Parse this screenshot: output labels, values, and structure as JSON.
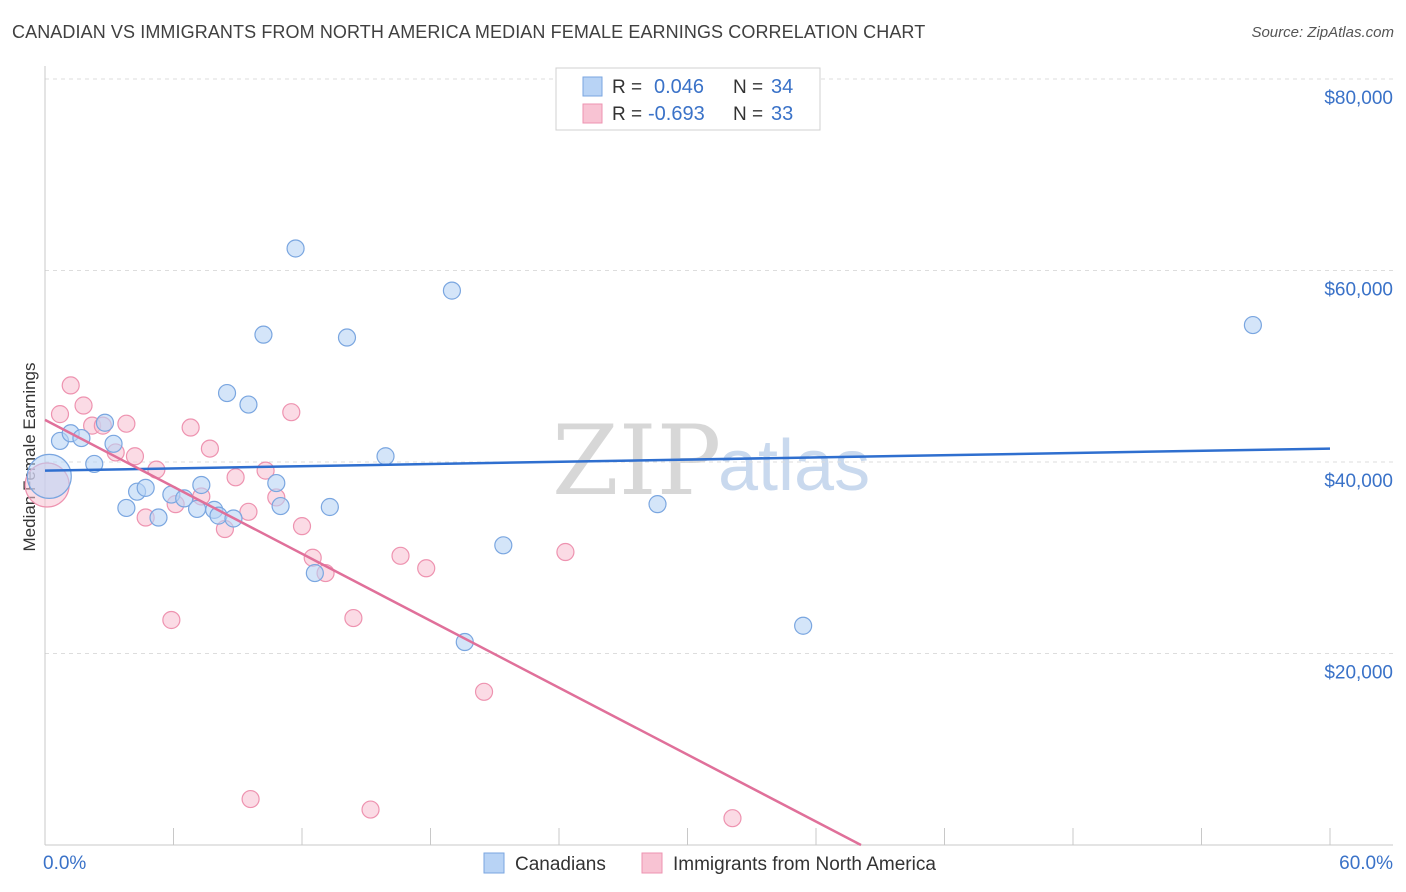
{
  "title": "CANADIAN VS IMMIGRANTS FROM NORTH AMERICA MEDIAN FEMALE EARNINGS CORRELATION CHART",
  "source": "Source: ZipAtlas.com",
  "watermark": {
    "zip": "ZIP",
    "atlas": "atlas"
  },
  "legend": {
    "r_label": "R =",
    "n_label": "N =",
    "series": [
      {
        "r": "0.046",
        "n": "34"
      },
      {
        "r": "-0.693",
        "n": "33"
      }
    ]
  },
  "chart_data": {
    "type": "scatter",
    "ylabel": "Median Female Earnings",
    "xlabel": "",
    "x_tick_labels": [
      "0.0%",
      "60.0%"
    ],
    "y_tick_labels": [
      "$20,000",
      "$40,000",
      "$60,000",
      "$80,000"
    ],
    "y_ticks": [
      20000,
      40000,
      60000,
      80000
    ],
    "xlim": [
      0,
      60
    ],
    "ylim": [
      0,
      80000
    ],
    "colors": {
      "canadians_fill": "#b8d3f5",
      "canadians_stroke": "#7aa6e0",
      "canadians_line": "#2f6fcf",
      "immigrants_fill": "#f8c3d3",
      "immigrants_stroke": "#ee93b0",
      "immigrants_line": "#e0709a"
    },
    "series": [
      {
        "name": "Canadians",
        "trend": {
          "x": [
            0,
            60
          ],
          "y": [
            39100,
            41400
          ]
        },
        "points": [
          {
            "x": 0.2,
            "y": 38500,
            "big": true
          },
          {
            "x": 0.7,
            "y": 42200
          },
          {
            "x": 1.2,
            "y": 43000
          },
          {
            "x": 1.7,
            "y": 42500
          },
          {
            "x": 2.3,
            "y": 39800
          },
          {
            "x": 2.8,
            "y": 44100
          },
          {
            "x": 3.2,
            "y": 41900
          },
          {
            "x": 3.8,
            "y": 35200
          },
          {
            "x": 4.3,
            "y": 36900
          },
          {
            "x": 4.7,
            "y": 37300
          },
          {
            "x": 5.3,
            "y": 34200
          },
          {
            "x": 5.9,
            "y": 36600
          },
          {
            "x": 6.5,
            "y": 36200
          },
          {
            "x": 7.1,
            "y": 35100
          },
          {
            "x": 7.3,
            "y": 37600
          },
          {
            "x": 7.9,
            "y": 35000
          },
          {
            "x": 8.1,
            "y": 34400
          },
          {
            "x": 8.8,
            "y": 34100
          },
          {
            "x": 8.5,
            "y": 47200
          },
          {
            "x": 9.5,
            "y": 46000
          },
          {
            "x": 10.2,
            "y": 53300
          },
          {
            "x": 10.8,
            "y": 37800
          },
          {
            "x": 11.0,
            "y": 35400
          },
          {
            "x": 11.7,
            "y": 62300
          },
          {
            "x": 12.6,
            "y": 28400
          },
          {
            "x": 13.3,
            "y": 35300
          },
          {
            "x": 14.1,
            "y": 53000
          },
          {
            "x": 15.9,
            "y": 40600
          },
          {
            "x": 19.0,
            "y": 57900
          },
          {
            "x": 19.6,
            "y": 21200
          },
          {
            "x": 21.4,
            "y": 31300
          },
          {
            "x": 28.6,
            "y": 35600
          },
          {
            "x": 35.4,
            "y": 22900
          },
          {
            "x": 56.4,
            "y": 54300
          }
        ]
      },
      {
        "name": "Immigrants from North America",
        "trend": {
          "x": [
            0,
            38.1
          ],
          "y": [
            44400,
            0
          ]
        },
        "points": [
          {
            "x": 0.1,
            "y": 37600,
            "big": true
          },
          {
            "x": 0.7,
            "y": 45000
          },
          {
            "x": 1.2,
            "y": 48000
          },
          {
            "x": 1.8,
            "y": 45900
          },
          {
            "x": 2.2,
            "y": 43800
          },
          {
            "x": 2.7,
            "y": 43800
          },
          {
            "x": 3.3,
            "y": 41000
          },
          {
            "x": 3.8,
            "y": 44000
          },
          {
            "x": 4.2,
            "y": 40600
          },
          {
            "x": 4.7,
            "y": 34200
          },
          {
            "x": 5.2,
            "y": 39200
          },
          {
            "x": 5.9,
            "y": 23500
          },
          {
            "x": 6.1,
            "y": 35600
          },
          {
            "x": 6.8,
            "y": 43600
          },
          {
            "x": 7.3,
            "y": 36400
          },
          {
            "x": 7.7,
            "y": 41400
          },
          {
            "x": 8.4,
            "y": 33000
          },
          {
            "x": 8.9,
            "y": 38400
          },
          {
            "x": 9.5,
            "y": 34800
          },
          {
            "x": 9.6,
            "y": 4800
          },
          {
            "x": 10.3,
            "y": 39100
          },
          {
            "x": 10.8,
            "y": 36300
          },
          {
            "x": 11.5,
            "y": 45200
          },
          {
            "x": 12.0,
            "y": 33300
          },
          {
            "x": 12.5,
            "y": 30000
          },
          {
            "x": 13.1,
            "y": 28400
          },
          {
            "x": 14.4,
            "y": 23700
          },
          {
            "x": 15.2,
            "y": 3700
          },
          {
            "x": 16.6,
            "y": 30200
          },
          {
            "x": 17.8,
            "y": 28900
          },
          {
            "x": 20.5,
            "y": 16000
          },
          {
            "x": 24.3,
            "y": 30600
          },
          {
            "x": 32.1,
            "y": 2800
          }
        ]
      }
    ]
  }
}
